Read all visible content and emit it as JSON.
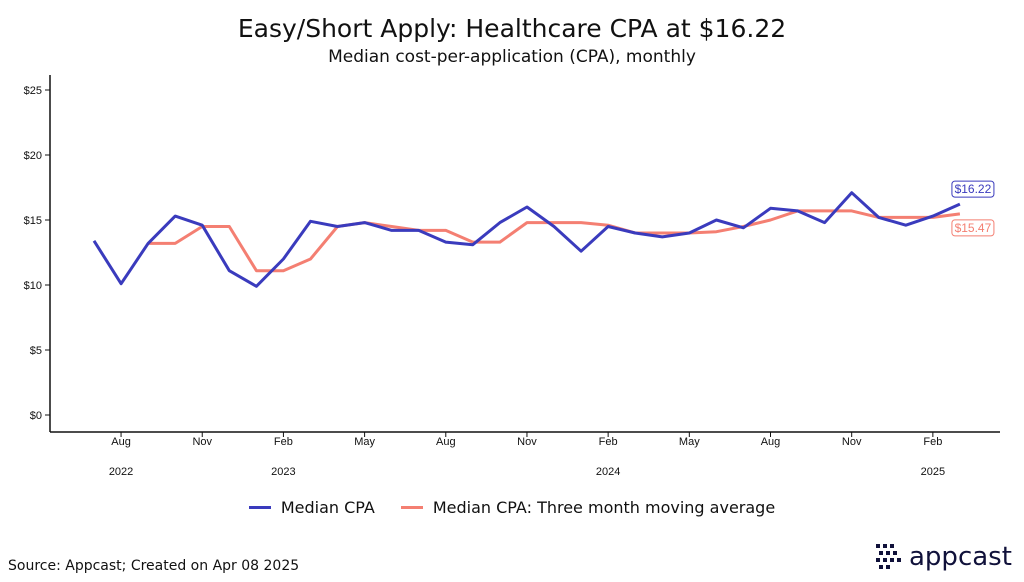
{
  "chart_data": {
    "type": "line",
    "title": "Easy/Short Apply: Healthcare CPA at $16.22",
    "subtitle": "Median cost-per-application (CPA), monthly",
    "x": [
      "2022-07",
      "2022-08",
      "2022-09",
      "2022-10",
      "2022-11",
      "2022-12",
      "2023-01",
      "2023-02",
      "2023-03",
      "2023-04",
      "2023-05",
      "2023-06",
      "2023-07",
      "2023-08",
      "2023-09",
      "2023-10",
      "2023-11",
      "2023-12",
      "2024-01",
      "2024-02",
      "2024-03",
      "2024-04",
      "2024-05",
      "2024-06",
      "2024-07",
      "2024-08",
      "2024-09",
      "2024-10",
      "2024-11",
      "2024-12",
      "2025-01",
      "2025-02",
      "2025-03"
    ],
    "series": [
      {
        "name": "Median CPA",
        "color": "#3a3bbd",
        "values": [
          13.4,
          10.1,
          13.2,
          15.3,
          14.6,
          11.1,
          9.9,
          12.0,
          14.9,
          14.5,
          14.8,
          14.2,
          14.2,
          13.3,
          13.1,
          14.8,
          16.0,
          14.5,
          12.6,
          14.5,
          14.0,
          13.7,
          14.0,
          15.0,
          14.4,
          15.9,
          15.7,
          14.8,
          17.1,
          15.2,
          14.6,
          15.3,
          16.22
        ]
      },
      {
        "name": "Median CPA: Three month moving average",
        "color": "#f47f72",
        "values": [
          null,
          null,
          13.2,
          13.2,
          14.5,
          14.5,
          11.1,
          11.1,
          12.0,
          14.5,
          14.8,
          14.5,
          14.2,
          14.2,
          13.3,
          13.3,
          14.8,
          14.8,
          14.8,
          14.6,
          14.0,
          14.0,
          14.0,
          14.1,
          14.5,
          15.0,
          15.7,
          15.7,
          15.7,
          15.2,
          15.2,
          15.2,
          15.47
        ]
      }
    ],
    "end_labels": [
      "$16.22",
      "$15.47"
    ],
    "ylim": [
      0,
      25
    ],
    "y_ticks": [
      "$0",
      "$5",
      "$10",
      "$15",
      "$20",
      "$25"
    ],
    "x_tick_labels": [
      {
        "date": "2022-08",
        "label": "Aug"
      },
      {
        "date": "2022-11",
        "label": "Nov"
      },
      {
        "date": "2023-02",
        "label": "Feb"
      },
      {
        "date": "2023-05",
        "label": "May"
      },
      {
        "date": "2023-08",
        "label": "Aug"
      },
      {
        "date": "2023-11",
        "label": "Nov"
      },
      {
        "date": "2024-02",
        "label": "Feb"
      },
      {
        "date": "2024-05",
        "label": "May"
      },
      {
        "date": "2024-08",
        "label": "Aug"
      },
      {
        "date": "2024-11",
        "label": "Nov"
      },
      {
        "date": "2025-02",
        "label": "Feb"
      }
    ],
    "year_labels": [
      {
        "date": "2022-08",
        "label": "2022"
      },
      {
        "date": "2023-02",
        "label": "2023"
      },
      {
        "date": "2024-02",
        "label": "2024"
      },
      {
        "date": "2025-02",
        "label": "2025"
      }
    ],
    "grid": false,
    "legend_position": "bottom"
  },
  "source_text": "Source: Appcast; Created on Apr 08 2025",
  "logo": {
    "text": "appcast",
    "icon": "appcast-pixel-logo-icon",
    "color": "#10113a"
  }
}
